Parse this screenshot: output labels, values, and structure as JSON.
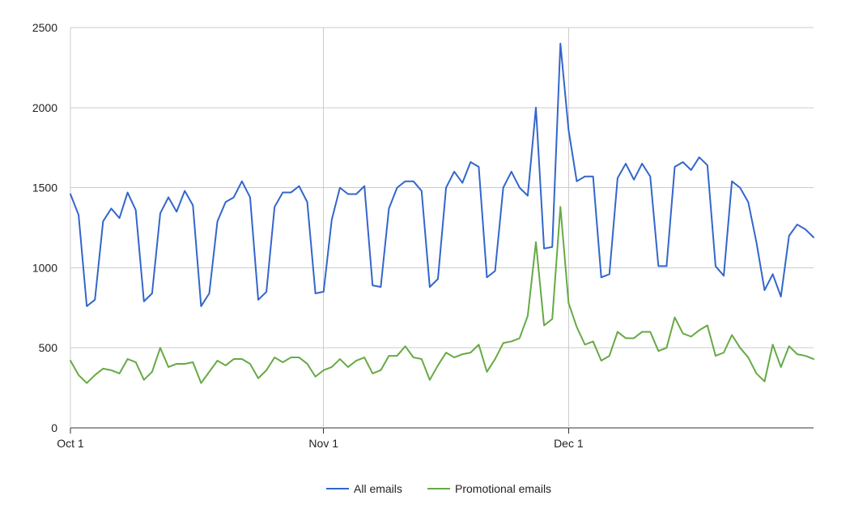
{
  "chart_data": {
    "type": "line",
    "title": "",
    "xlabel": "",
    "ylabel": "",
    "x_range": [
      "2016-10-01",
      "2016-12-31"
    ],
    "ylim": [
      0,
      2500
    ],
    "y_ticks": [
      0,
      500,
      1000,
      1500,
      2000,
      2500
    ],
    "y_tick_labels": [
      "0",
      "500",
      "1000",
      "1500",
      "2000",
      "2500"
    ],
    "x_ticks": [
      {
        "date": "2016-10-01",
        "label": "Oct 1"
      },
      {
        "date": "2016-11-01",
        "label": "Nov 1"
      },
      {
        "date": "2016-12-01",
        "label": "Dec 1"
      }
    ],
    "grid": true,
    "legend_position": "bottom",
    "series": [
      {
        "name": "All emails",
        "color": "#3366cc",
        "values": [
          1460,
          1330,
          760,
          800,
          1290,
          1370,
          1310,
          1470,
          1360,
          790,
          840,
          1340,
          1440,
          1350,
          1480,
          1390,
          760,
          840,
          1290,
          1410,
          1440,
          1540,
          1440,
          800,
          850,
          1380,
          1470,
          1470,
          1510,
          1410,
          840,
          850,
          1300,
          1500,
          1460,
          1460,
          1510,
          890,
          880,
          1370,
          1500,
          1540,
          1540,
          1480,
          880,
          930,
          1500,
          1600,
          1530,
          1660,
          1630,
          940,
          980,
          1500,
          1600,
          1500,
          1450,
          2000,
          1120,
          1130,
          2400,
          1860,
          1540,
          1570,
          1570,
          940,
          960,
          1560,
          1650,
          1550,
          1650,
          1570,
          1010,
          1010,
          1630,
          1660,
          1610,
          1690,
          1640,
          1010,
          950,
          1540,
          1500,
          1410,
          1160,
          860,
          960,
          820,
          1200,
          1270,
          1240,
          1190
        ]
      },
      {
        "name": "Promotional emails",
        "color": "#66aa44",
        "values": [
          420,
          330,
          280,
          330,
          370,
          360,
          340,
          430,
          410,
          300,
          350,
          500,
          380,
          400,
          400,
          410,
          280,
          350,
          420,
          390,
          430,
          430,
          400,
          310,
          360,
          440,
          410,
          440,
          440,
          400,
          320,
          360,
          380,
          430,
          380,
          420,
          440,
          340,
          360,
          450,
          450,
          510,
          440,
          430,
          300,
          390,
          470,
          440,
          460,
          470,
          520,
          350,
          430,
          530,
          540,
          560,
          700,
          1160,
          640,
          680,
          1380,
          780,
          630,
          520,
          540,
          420,
          450,
          600,
          560,
          560,
          600,
          600,
          480,
          500,
          690,
          590,
          570,
          610,
          640,
          450,
          470,
          580,
          500,
          440,
          340,
          290,
          520,
          380,
          510,
          460,
          450,
          430
        ]
      }
    ]
  }
}
